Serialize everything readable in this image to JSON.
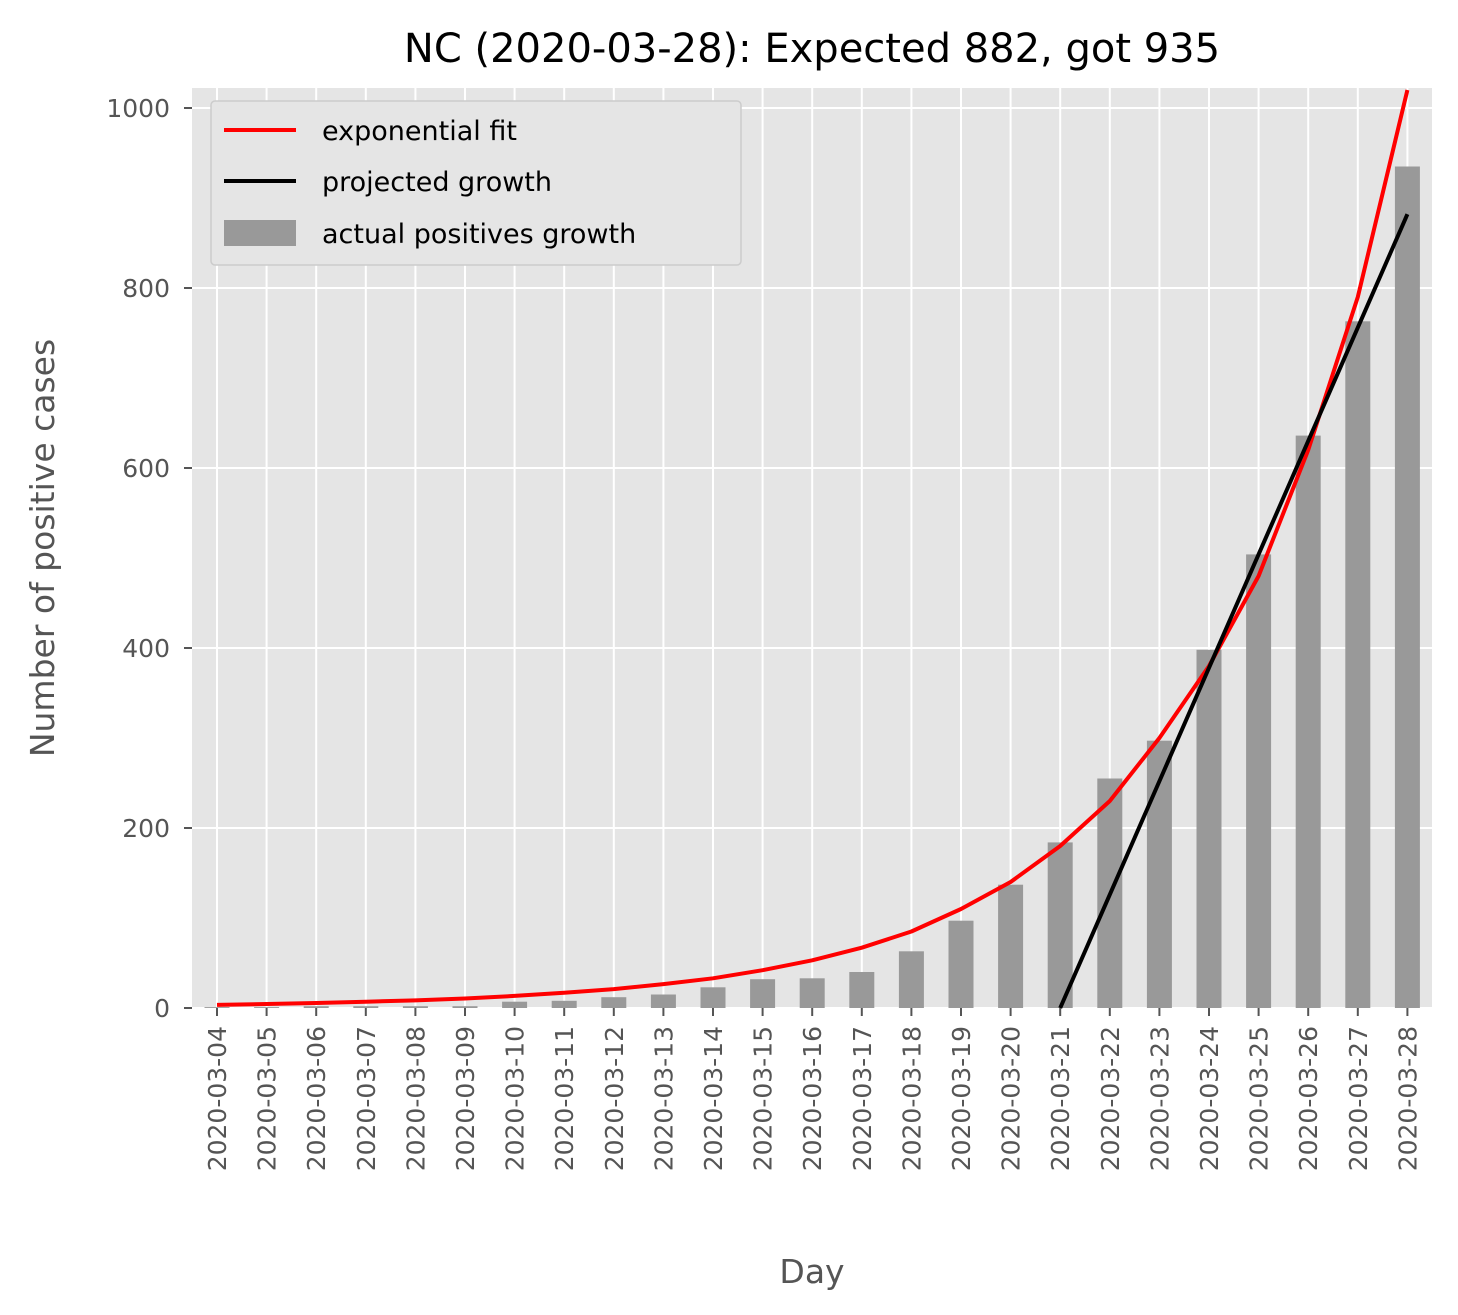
{
  "chart_data": {
    "type": "bar",
    "title": "NC (2020-03-28): Expected 882, got 935",
    "xlabel": "Day",
    "ylabel": "Number of positive cases",
    "ylim": [
      0,
      1020
    ],
    "yticks": [
      0,
      200,
      400,
      600,
      800,
      1000
    ],
    "grid": true,
    "legend_position": "top-left",
    "categories": [
      "2020-03-04",
      "2020-03-05",
      "2020-03-06",
      "2020-03-07",
      "2020-03-08",
      "2020-03-09",
      "2020-03-10",
      "2020-03-11",
      "2020-03-12",
      "2020-03-13",
      "2020-03-14",
      "2020-03-15",
      "2020-03-16",
      "2020-03-17",
      "2020-03-18",
      "2020-03-19",
      "2020-03-20",
      "2020-03-21",
      "2020-03-22",
      "2020-03-23",
      "2020-03-24",
      "2020-03-25",
      "2020-03-26",
      "2020-03-27",
      "2020-03-28"
    ],
    "series": [
      {
        "name": "actual positives growth",
        "kind": "bar",
        "color": "#999999",
        "values": [
          1,
          1,
          2,
          2,
          2,
          2,
          7,
          8,
          12,
          15,
          23,
          32,
          33,
          40,
          63,
          97,
          137,
          184,
          255,
          297,
          398,
          504,
          636,
          763,
          935
        ]
      },
      {
        "name": "exponential fit",
        "kind": "line",
        "color": "#ff0000",
        "values": [
          3.5,
          4.5,
          5.5,
          7,
          8.5,
          10.5,
          13.5,
          17,
          21,
          26.5,
          33,
          42,
          53,
          67,
          85,
          110,
          140,
          180,
          230,
          300,
          380,
          480,
          620,
          790,
          1020
        ]
      },
      {
        "name": "projected growth",
        "kind": "line",
        "color": "#000000",
        "points": [
          [
            "2020-03-21",
            0
          ],
          [
            "2020-03-28",
            882
          ]
        ]
      }
    ]
  }
}
